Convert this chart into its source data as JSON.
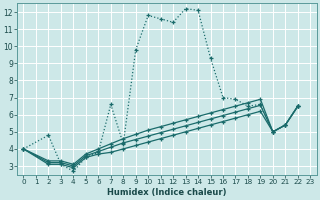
{
  "xlabel": "Humidex (Indice chaleur)",
  "background_color": "#cde8e8",
  "grid_color": "#b0d8d8",
  "line_color": "#1a6b6b",
  "xlim": [
    -0.5,
    23.5
  ],
  "ylim": [
    2.5,
    12.5
  ],
  "xticks": [
    0,
    1,
    2,
    3,
    4,
    5,
    6,
    7,
    8,
    9,
    10,
    11,
    12,
    13,
    14,
    15,
    16,
    17,
    18,
    19,
    20,
    21,
    22,
    23
  ],
  "yticks": [
    3,
    4,
    5,
    6,
    7,
    8,
    9,
    10,
    11,
    12
  ],
  "series": [
    {
      "x": [
        0,
        2,
        3,
        4,
        5,
        6,
        7,
        8,
        9,
        10,
        11,
        12,
        13,
        14,
        15,
        16,
        17,
        18,
        19,
        20,
        21,
        22
      ],
      "y": [
        4,
        4.8,
        3.1,
        2.7,
        3.5,
        3.8,
        6.6,
        4.3,
        9.8,
        11.8,
        11.6,
        11.4,
        12.2,
        12.1,
        9.3,
        7.0,
        6.9,
        6.5,
        6.6,
        5.0,
        5.4,
        6.5
      ],
      "linestyle": ":"
    },
    {
      "x": [
        0,
        2,
        3,
        4,
        5,
        6,
        7,
        8,
        9,
        10,
        11,
        12,
        13,
        14,
        15,
        16,
        17,
        18,
        19,
        20,
        21,
        22
      ],
      "y": [
        4,
        3.1,
        3.1,
        2.9,
        3.5,
        3.7,
        3.8,
        4.0,
        4.2,
        4.4,
        4.6,
        4.8,
        5.0,
        5.2,
        5.4,
        5.6,
        5.8,
        6.0,
        6.2,
        5.0,
        5.4,
        6.5
      ],
      "linestyle": "-"
    },
    {
      "x": [
        0,
        2,
        3,
        4,
        5,
        6,
        7,
        8,
        9,
        10,
        11,
        12,
        13,
        14,
        15,
        16,
        17,
        18,
        19,
        20,
        21,
        22
      ],
      "y": [
        4,
        3.2,
        3.2,
        3.0,
        3.6,
        3.85,
        4.1,
        4.35,
        4.55,
        4.75,
        4.95,
        5.15,
        5.35,
        5.55,
        5.75,
        5.95,
        6.15,
        6.35,
        6.55,
        5.0,
        5.4,
        6.5
      ],
      "linestyle": "-"
    },
    {
      "x": [
        0,
        2,
        3,
        4,
        5,
        6,
        7,
        8,
        9,
        10,
        11,
        12,
        13,
        14,
        15,
        16,
        17,
        18,
        19,
        20,
        21,
        22
      ],
      "y": [
        4,
        3.3,
        3.3,
        3.1,
        3.7,
        4.0,
        4.3,
        4.6,
        4.85,
        5.1,
        5.3,
        5.5,
        5.7,
        5.9,
        6.1,
        6.3,
        6.5,
        6.7,
        6.9,
        5.0,
        5.4,
        6.5
      ],
      "linestyle": "-"
    }
  ]
}
